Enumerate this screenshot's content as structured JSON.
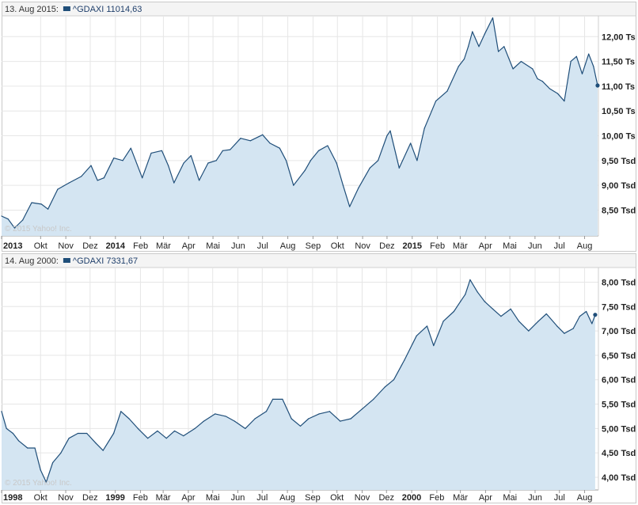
{
  "chart_data": [
    {
      "type": "area",
      "header": {
        "date": "13. Aug 2015:",
        "series_label": "^GDAXI 11014,63"
      },
      "watermark": "© 2015 Yahoo! Inc.",
      "x_ticks": [
        {
          "label": "2013",
          "date": "2013-08-14",
          "bold": true
        },
        {
          "label": "Okt",
          "date": "2013-10-01"
        },
        {
          "label": "Nov",
          "date": "2013-11-01"
        },
        {
          "label": "Dez",
          "date": "2013-12-01"
        },
        {
          "label": "2014",
          "date": "2014-01-01",
          "bold": true
        },
        {
          "label": "Feb",
          "date": "2014-02-01"
        },
        {
          "label": "Mär",
          "date": "2014-03-01"
        },
        {
          "label": "Apr",
          "date": "2014-04-01"
        },
        {
          "label": "Mai",
          "date": "2014-05-01"
        },
        {
          "label": "Jun",
          "date": "2014-06-01"
        },
        {
          "label": "Jul",
          "date": "2014-07-01"
        },
        {
          "label": "Aug",
          "date": "2014-08-01"
        },
        {
          "label": "Sep",
          "date": "2014-09-01"
        },
        {
          "label": "Okt",
          "date": "2014-10-01"
        },
        {
          "label": "Nov",
          "date": "2014-11-01"
        },
        {
          "label": "Dez",
          "date": "2014-12-01"
        },
        {
          "label": "2015",
          "date": "2015-01-01",
          "bold": true
        },
        {
          "label": "Feb",
          "date": "2015-02-01"
        },
        {
          "label": "Mär",
          "date": "2015-03-01"
        },
        {
          "label": "Apr",
          "date": "2015-04-01"
        },
        {
          "label": "Mai",
          "date": "2015-05-01"
        },
        {
          "label": "Jun",
          "date": "2015-06-01"
        },
        {
          "label": "Jul",
          "date": "2015-07-01"
        },
        {
          "label": "Aug",
          "date": "2015-08-01"
        }
      ],
      "y_ticks": [
        {
          "label": "8,50 Tsd",
          "value": 8500
        },
        {
          "label": "9,00 Tsd",
          "value": 9000
        },
        {
          "label": "9,50 Tsd",
          "value": 9500
        },
        {
          "label": "10,00 Ts",
          "value": 10000
        },
        {
          "label": "10,50 Ts",
          "value": 10500
        },
        {
          "label": "11,00 Ts",
          "value": 11000
        },
        {
          "label": "11,50 Ts",
          "value": 11500
        },
        {
          "label": "12,00 Ts",
          "value": 12000
        }
      ],
      "x_range": [
        "2013-08-14",
        "2015-08-18"
      ],
      "ylim": [
        7980,
        12420
      ],
      "grid": true,
      "series": [
        {
          "name": "^GDAXI",
          "points": [
            [
              "2013-08-14",
              8380
            ],
            [
              "2013-08-22",
              8320
            ],
            [
              "2013-08-30",
              8140
            ],
            [
              "2013-09-09",
              8300
            ],
            [
              "2013-09-20",
              8650
            ],
            [
              "2013-10-02",
              8620
            ],
            [
              "2013-10-10",
              8520
            ],
            [
              "2013-10-22",
              8920
            ],
            [
              "2013-11-05",
              9050
            ],
            [
              "2013-11-20",
              9180
            ],
            [
              "2013-12-02",
              9400
            ],
            [
              "2013-12-10",
              9100
            ],
            [
              "2013-12-18",
              9150
            ],
            [
              "2013-12-30",
              9550
            ],
            [
              "2014-01-10",
              9500
            ],
            [
              "2014-01-20",
              9750
            ],
            [
              "2014-02-03",
              9150
            ],
            [
              "2014-02-14",
              9650
            ],
            [
              "2014-02-27",
              9700
            ],
            [
              "2014-03-07",
              9400
            ],
            [
              "2014-03-14",
              9050
            ],
            [
              "2014-03-26",
              9450
            ],
            [
              "2014-04-04",
              9600
            ],
            [
              "2014-04-14",
              9100
            ],
            [
              "2014-04-25",
              9450
            ],
            [
              "2014-05-05",
              9500
            ],
            [
              "2014-05-13",
              9700
            ],
            [
              "2014-05-22",
              9720
            ],
            [
              "2014-06-04",
              9950
            ],
            [
              "2014-06-16",
              9900
            ],
            [
              "2014-07-01",
              10020
            ],
            [
              "2014-07-10",
              9850
            ],
            [
              "2014-07-22",
              9750
            ],
            [
              "2014-07-30",
              9500
            ],
            [
              "2014-08-08",
              9000
            ],
            [
              "2014-08-22",
              9300
            ],
            [
              "2014-08-29",
              9500
            ],
            [
              "2014-09-08",
              9700
            ],
            [
              "2014-09-19",
              9800
            ],
            [
              "2014-09-30",
              9450
            ],
            [
              "2014-10-08",
              9000
            ],
            [
              "2014-10-16",
              8570
            ],
            [
              "2014-10-27",
              8950
            ],
            [
              "2014-11-10",
              9350
            ],
            [
              "2014-11-20",
              9500
            ],
            [
              "2014-12-01",
              10000
            ],
            [
              "2014-12-05",
              10100
            ],
            [
              "2014-12-16",
              9350
            ],
            [
              "2014-12-30",
              9850
            ],
            [
              "2015-01-07",
              9500
            ],
            [
              "2015-01-16",
              10150
            ],
            [
              "2015-01-30",
              10700
            ],
            [
              "2015-02-13",
              10900
            ],
            [
              "2015-02-27",
              11400
            ],
            [
              "2015-03-06",
              11550
            ],
            [
              "2015-03-11",
              11800
            ],
            [
              "2015-03-16",
              12100
            ],
            [
              "2015-03-24",
              11800
            ],
            [
              "2015-03-31",
              12050
            ],
            [
              "2015-04-10",
              12380
            ],
            [
              "2015-04-17",
              11700
            ],
            [
              "2015-04-24",
              11800
            ],
            [
              "2015-05-05",
              11350
            ],
            [
              "2015-05-15",
              11500
            ],
            [
              "2015-05-29",
              11350
            ],
            [
              "2015-06-04",
              11150
            ],
            [
              "2015-06-10",
              11100
            ],
            [
              "2015-06-19",
              10950
            ],
            [
              "2015-06-29",
              10850
            ],
            [
              "2015-07-07",
              10700
            ],
            [
              "2015-07-15",
              11500
            ],
            [
              "2015-07-22",
              11600
            ],
            [
              "2015-07-29",
              11250
            ],
            [
              "2015-08-06",
              11650
            ],
            [
              "2015-08-12",
              11400
            ],
            [
              "2015-08-17",
              11014.63
            ]
          ]
        }
      ]
    },
    {
      "type": "area",
      "header": {
        "date": "14. Aug 2000:",
        "series_label": "^GDAXI 7331,67"
      },
      "watermark": "© 2015 Yahoo! Inc.",
      "x_ticks": [
        {
          "label": "1998",
          "date": "1998-08-14",
          "bold": true
        },
        {
          "label": "Okt",
          "date": "1998-10-01"
        },
        {
          "label": "Nov",
          "date": "1998-11-01"
        },
        {
          "label": "Dez",
          "date": "1998-12-01"
        },
        {
          "label": "1999",
          "date": "1999-01-01",
          "bold": true
        },
        {
          "label": "Feb",
          "date": "1999-02-01"
        },
        {
          "label": "Mär",
          "date": "1999-03-01"
        },
        {
          "label": "Apr",
          "date": "1999-04-01"
        },
        {
          "label": "Mai",
          "date": "1999-05-01"
        },
        {
          "label": "Jun",
          "date": "1999-06-01"
        },
        {
          "label": "Jul",
          "date": "1999-07-01"
        },
        {
          "label": "Aug",
          "date": "1999-08-01"
        },
        {
          "label": "Sep",
          "date": "1999-09-01"
        },
        {
          "label": "Okt",
          "date": "1999-10-01"
        },
        {
          "label": "Nov",
          "date": "1999-11-01"
        },
        {
          "label": "Dez",
          "date": "1999-12-01"
        },
        {
          "label": "2000",
          "date": "2000-01-01",
          "bold": true
        },
        {
          "label": "Feb",
          "date": "2000-02-01"
        },
        {
          "label": "Mär",
          "date": "2000-03-01"
        },
        {
          "label": "Apr",
          "date": "2000-04-01"
        },
        {
          "label": "Mai",
          "date": "2000-05-01"
        },
        {
          "label": "Jun",
          "date": "2000-06-01"
        },
        {
          "label": "Jul",
          "date": "2000-07-01"
        },
        {
          "label": "Aug",
          "date": "2000-08-01"
        }
      ],
      "y_ticks": [
        {
          "label": "4,00 Tsd",
          "value": 4000
        },
        {
          "label": "4,50 Tsd",
          "value": 4500
        },
        {
          "label": "5,00 Tsd",
          "value": 5000
        },
        {
          "label": "5,50 Tsd",
          "value": 5500
        },
        {
          "label": "6,00 Tsd",
          "value": 6000
        },
        {
          "label": "6,50 Tsd",
          "value": 6500
        },
        {
          "label": "7,00 Tsd",
          "value": 7000
        },
        {
          "label": "7,50 Tsd",
          "value": 7500
        },
        {
          "label": "8,00 Tsd",
          "value": 8000
        }
      ],
      "x_range": [
        "1998-08-14",
        "2000-08-18"
      ],
      "ylim": [
        3740,
        8300
      ],
      "grid": true,
      "series": [
        {
          "name": "^GDAXI",
          "points": [
            [
              "1998-08-14",
              5350
            ],
            [
              "1998-08-20",
              5000
            ],
            [
              "1998-08-28",
              4900
            ],
            [
              "1998-09-04",
              4750
            ],
            [
              "1998-09-15",
              4600
            ],
            [
              "1998-09-24",
              4600
            ],
            [
              "1998-10-01",
              4150
            ],
            [
              "1998-10-08",
              3900
            ],
            [
              "1998-10-16",
              4300
            ],
            [
              "1998-10-26",
              4500
            ],
            [
              "1998-11-05",
              4800
            ],
            [
              "1998-11-16",
              4900
            ],
            [
              "1998-11-27",
              4900
            ],
            [
              "1998-12-08",
              4700
            ],
            [
              "1998-12-17",
              4550
            ],
            [
              "1998-12-30",
              4900
            ],
            [
              "1999-01-08",
              5350
            ],
            [
              "1999-01-18",
              5200
            ],
            [
              "1999-01-29",
              5000
            ],
            [
              "1999-02-10",
              4800
            ],
            [
              "1999-02-22",
              4950
            ],
            [
              "1999-03-05",
              4800
            ],
            [
              "1999-03-15",
              4950
            ],
            [
              "1999-03-26",
              4850
            ],
            [
              "1999-04-09",
              5000
            ],
            [
              "1999-04-20",
              5150
            ],
            [
              "1999-05-04",
              5300
            ],
            [
              "1999-05-17",
              5250
            ],
            [
              "1999-05-28",
              5150
            ],
            [
              "1999-06-10",
              5000
            ],
            [
              "1999-06-22",
              5200
            ],
            [
              "1999-07-06",
              5350
            ],
            [
              "1999-07-14",
              5600
            ],
            [
              "1999-07-26",
              5600
            ],
            [
              "1999-08-06",
              5200
            ],
            [
              "1999-08-17",
              5050
            ],
            [
              "1999-08-27",
              5200
            ],
            [
              "1999-09-09",
              5300
            ],
            [
              "1999-09-22",
              5350
            ],
            [
              "1999-10-05",
              5150
            ],
            [
              "1999-10-18",
              5200
            ],
            [
              "1999-11-01",
              5400
            ],
            [
              "1999-11-15",
              5600
            ],
            [
              "1999-11-29",
              5850
            ],
            [
              "1999-12-10",
              6000
            ],
            [
              "1999-12-23",
              6400
            ],
            [
              "2000-01-07",
              6900
            ],
            [
              "2000-01-20",
              7100
            ],
            [
              "2000-01-28",
              6700
            ],
            [
              "2000-02-09",
              7200
            ],
            [
              "2000-02-22",
              7400
            ],
            [
              "2000-03-01",
              7600
            ],
            [
              "2000-03-07",
              7750
            ],
            [
              "2000-03-13",
              8050
            ],
            [
              "2000-03-22",
              7800
            ],
            [
              "2000-03-31",
              7600
            ],
            [
              "2000-04-10",
              7450
            ],
            [
              "2000-04-20",
              7300
            ],
            [
              "2000-05-02",
              7450
            ],
            [
              "2000-05-12",
              7200
            ],
            [
              "2000-05-24",
              7000
            ],
            [
              "2000-06-05",
              7200
            ],
            [
              "2000-06-15",
              7350
            ],
            [
              "2000-06-28",
              7100
            ],
            [
              "2000-07-07",
              6950
            ],
            [
              "2000-07-18",
              7050
            ],
            [
              "2000-07-26",
              7300
            ],
            [
              "2000-08-03",
              7400
            ],
            [
              "2000-08-10",
              7150
            ],
            [
              "2000-08-14",
              7331.67
            ]
          ]
        }
      ]
    }
  ]
}
